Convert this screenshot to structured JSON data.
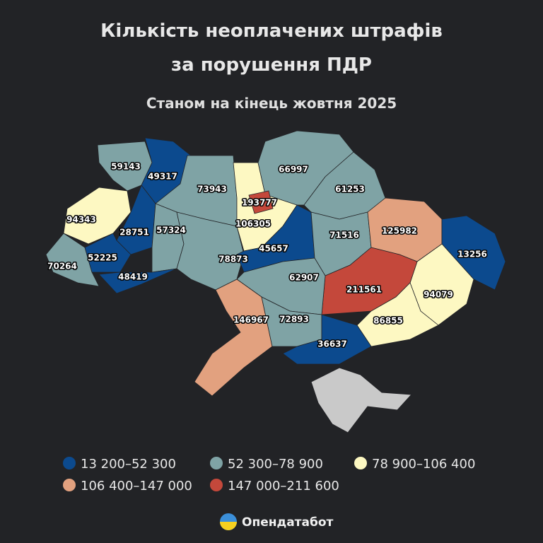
{
  "header": {
    "title_line1": "Кількість неоплачених штрафів",
    "title_line2": "за порушення ПДР",
    "subtitle": "Станом на кінець жовтня 2025"
  },
  "map": {
    "regions": [
      {
        "value": 59143,
        "color": "#7fa3a5"
      },
      {
        "value": 49317,
        "color": "#0c4a8e"
      },
      {
        "value": 73943,
        "color": "#7fa3a5"
      },
      {
        "value": 94343,
        "color": "#fdf8c2"
      },
      {
        "value": 28751,
        "color": "#0c4a8e"
      },
      {
        "value": 57324,
        "color": "#7fa3a5"
      },
      {
        "value": 70264,
        "color": "#7fa3a5"
      },
      {
        "value": 52225,
        "color": "#0c4a8e"
      },
      {
        "value": 48419,
        "color": "#0c4a8e"
      },
      {
        "value": 78873,
        "color": "#7fa3a5"
      },
      {
        "value": 106305,
        "color": "#fdf8c2"
      },
      {
        "value": 66997,
        "color": "#7fa3a5"
      },
      {
        "value": 61253,
        "color": "#7fa3a5"
      },
      {
        "value": 45657,
        "color": "#0c4a8e"
      },
      {
        "value": 71516,
        "color": "#7fa3a5"
      },
      {
        "value": 125982,
        "color": "#e2a17f"
      },
      {
        "value": 13256,
        "color": "#0c4a8e"
      },
      {
        "value": 94079,
        "color": "#fdf8c2"
      },
      {
        "value": 211561,
        "color": "#c4483b"
      },
      {
        "value": 62907,
        "color": "#7fa3a5"
      },
      {
        "value": 146967,
        "color": "#e2a17f"
      },
      {
        "value": 72893,
        "color": "#7fa3a5"
      },
      {
        "value": 86855,
        "color": "#fdf8c2"
      },
      {
        "value": 36637,
        "color": "#0c4a8e"
      },
      {
        "value": 193777,
        "color": "#c4483b"
      }
    ]
  },
  "legend": [
    {
      "label": "13 200–52 300",
      "color": "#0c4a8e"
    },
    {
      "label": "52 300–78 900",
      "color": "#7fa3a5"
    },
    {
      "label": "78 900–106 400",
      "color": "#fdf8c2"
    },
    {
      "label": "106 400–147 000",
      "color": "#e2a17f"
    },
    {
      "label": "147 000–211 600",
      "color": "#c4483b"
    }
  ],
  "footer": {
    "brand": "Опендатабот"
  }
}
